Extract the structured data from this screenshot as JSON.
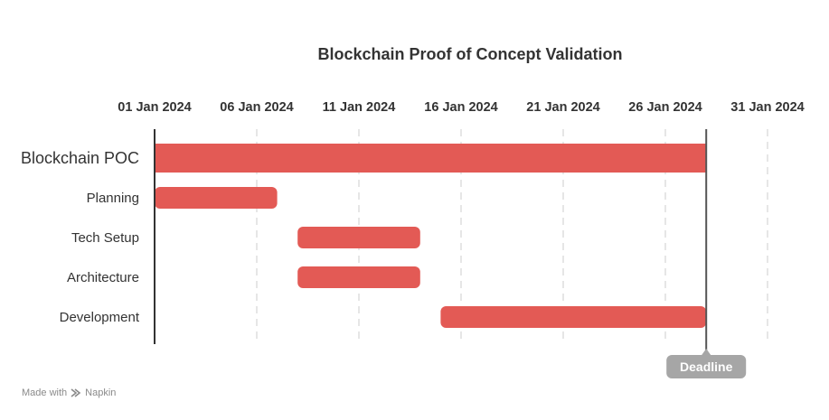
{
  "chart_data": {
    "type": "gantt",
    "title": "Blockchain Proof of Concept Validation",
    "x_ticks": [
      "01 Jan 2024",
      "06 Jan 2024",
      "11 Jan 2024",
      "16 Jan 2024",
      "21 Jan 2024",
      "26 Jan 2024",
      "31 Jan 2024"
    ],
    "x_range": [
      "2024-01-01",
      "2024-01-31"
    ],
    "grid": "vertical dashed",
    "tasks": [
      {
        "name": "Blockchain POC",
        "start": "2024-01-01",
        "end": "2024-01-28"
      },
      {
        "name": "Planning",
        "start": "2024-01-01",
        "end": "2024-01-07"
      },
      {
        "name": "Tech Setup",
        "start": "2024-01-08",
        "end": "2024-01-14"
      },
      {
        "name": "Architecture",
        "start": "2024-01-08",
        "end": "2024-01-14"
      },
      {
        "name": "Development",
        "start": "2024-01-15",
        "end": "2024-01-28"
      }
    ],
    "milestone": {
      "label": "Deadline",
      "date": "2024-01-28"
    },
    "colors": {
      "bar": "#e35a55",
      "text": "#333333",
      "grid": "#dddddd",
      "axis": "#333333",
      "milestone_line": "#555555",
      "milestone_badge": "#a6a6a6"
    }
  },
  "footer": {
    "made_with": "Made with",
    "brand": "Napkin"
  }
}
